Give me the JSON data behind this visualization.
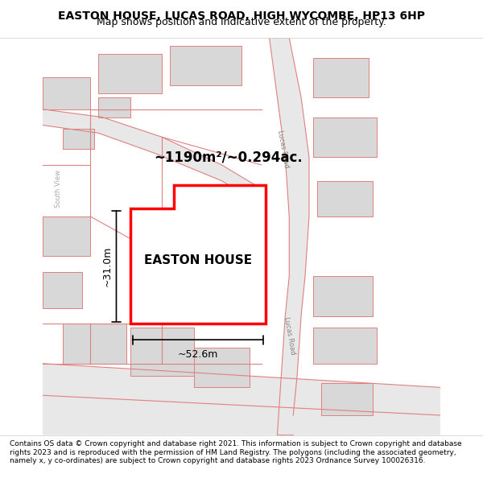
{
  "title": "EASTON HOUSE, LUCAS ROAD, HIGH WYCOMBE, HP13 6HP",
  "subtitle": "Map shows position and indicative extent of the property.",
  "footer": "Contains OS data © Crown copyright and database right 2021. This information is subject to Crown copyright and database rights 2023 and is reproduced with the permission of HM Land Registry. The polygons (including the associated geometry, namely x, y co-ordinates) are subject to Crown copyright and database rights 2023 Ordnance Survey 100026316.",
  "background_color": "#ffffff",
  "map_background": "#f8f8f8",
  "road_color": "#e8e8e8",
  "road_line_color": "#e08080",
  "building_fill": "#d8d8d8",
  "building_edge": "#c0a0a0",
  "property_fill": "#ffffff",
  "property_edge": "#ff0000",
  "property_lw": 2.5,
  "area_text": "~1190m²/~0.294ac.",
  "label_text": "EASTON HOUSE",
  "width_text": "~52.6m",
  "height_text": "~31.0m",
  "road_label_1": "Lucas Road",
  "road_label_2": "Lucas Road",
  "road_label_3": "South View"
}
